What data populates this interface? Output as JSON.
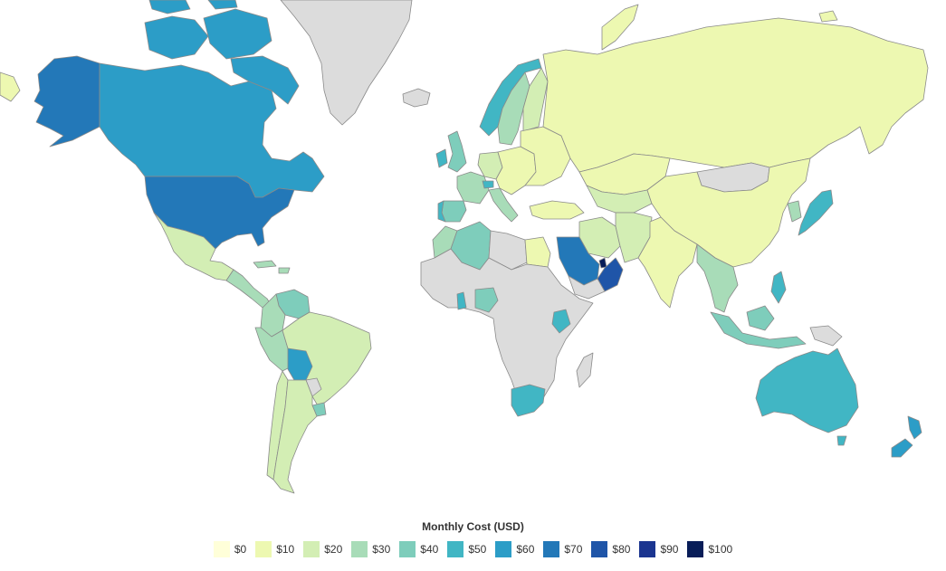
{
  "legend": {
    "title": "Monthly Cost (USD)",
    "items": [
      {
        "label": "$0",
        "color": "#ffffd9"
      },
      {
        "label": "$10",
        "color": "#edf8b1"
      },
      {
        "label": "$20",
        "color": "#d3eeb4"
      },
      {
        "label": "$30",
        "color": "#a8dcb8"
      },
      {
        "label": "$40",
        "color": "#7ecdbb"
      },
      {
        "label": "$50",
        "color": "#41b6c4"
      },
      {
        "label": "$60",
        "color": "#2c9dc7"
      },
      {
        "label": "$70",
        "color": "#2378b8"
      },
      {
        "label": "$80",
        "color": "#1f55a8"
      },
      {
        "label": "$90",
        "color": "#1b3590"
      },
      {
        "label": "$100",
        "color": "#081d58"
      }
    ]
  },
  "map": {
    "no_data_color": "#dcdcdc",
    "regions": [
      {
        "name": "Canada",
        "value": 60
      },
      {
        "name": "Alaska",
        "value": 70
      },
      {
        "name": "United States",
        "value": 70
      },
      {
        "name": "Greenland",
        "value": null
      },
      {
        "name": "Iceland",
        "value": null
      },
      {
        "name": "Mexico",
        "value": 20
      },
      {
        "name": "Central America",
        "value": 30
      },
      {
        "name": "Venezuela",
        "value": 40
      },
      {
        "name": "Colombia",
        "value": 30
      },
      {
        "name": "Peru",
        "value": 30
      },
      {
        "name": "Brazil",
        "value": 20
      },
      {
        "name": "Bolivia",
        "value": 60
      },
      {
        "name": "Chile",
        "value": 20
      },
      {
        "name": "Argentina",
        "value": 20
      },
      {
        "name": "Uruguay",
        "value": 40
      },
      {
        "name": "Norway",
        "value": 50
      },
      {
        "name": "Sweden",
        "value": 30
      },
      {
        "name": "Finland",
        "value": 20
      },
      {
        "name": "United Kingdom",
        "value": 40
      },
      {
        "name": "Ireland",
        "value": 50
      },
      {
        "name": "France",
        "value": 30
      },
      {
        "name": "Spain",
        "value": 40
      },
      {
        "name": "Portugal",
        "value": 50
      },
      {
        "name": "Germany",
        "value": 20
      },
      {
        "name": "Central Europe",
        "value": 10
      },
      {
        "name": "Italy",
        "value": 30
      },
      {
        "name": "Switzerland",
        "value": 50
      },
      {
        "name": "Eastern Europe",
        "value": 10
      },
      {
        "name": "Turkey",
        "value": 10
      },
      {
        "name": "Russia",
        "value": 10
      },
      {
        "name": "Kazakhstan",
        "value": 10
      },
      {
        "name": "Central Asia",
        "value": 20
      },
      {
        "name": "Mongolia",
        "value": null
      },
      {
        "name": "China",
        "value": 10
      },
      {
        "name": "India",
        "value": 10
      },
      {
        "name": "Iran",
        "value": 20
      },
      {
        "name": "Afghanistan / Pakistan",
        "value": 20
      },
      {
        "name": "Saudi Arabia",
        "value": 70
      },
      {
        "name": "Oman / UAE",
        "value": 80
      },
      {
        "name": "Qatar",
        "value": 100
      },
      {
        "name": "Yemen",
        "value": null
      },
      {
        "name": "Egypt",
        "value": 10
      },
      {
        "name": "Libya",
        "value": null
      },
      {
        "name": "Algeria",
        "value": 40
      },
      {
        "name": "Morocco",
        "value": 30
      },
      {
        "name": "Nigeria",
        "value": 40
      },
      {
        "name": "Ghana",
        "value": 50
      },
      {
        "name": "Kenya",
        "value": 50
      },
      {
        "name": "Africa (other)",
        "value": null
      },
      {
        "name": "South Africa",
        "value": 50
      },
      {
        "name": "Madagascar",
        "value": null
      },
      {
        "name": "Japan",
        "value": 50
      },
      {
        "name": "South Korea",
        "value": 30
      },
      {
        "name": "Southeast Asia",
        "value": 30
      },
      {
        "name": "Indonesia",
        "value": 40
      },
      {
        "name": "Philippines",
        "value": 50
      },
      {
        "name": "Papua New Guinea",
        "value": null
      },
      {
        "name": "Australia",
        "value": 50
      },
      {
        "name": "New Zealand",
        "value": 60
      }
    ]
  }
}
